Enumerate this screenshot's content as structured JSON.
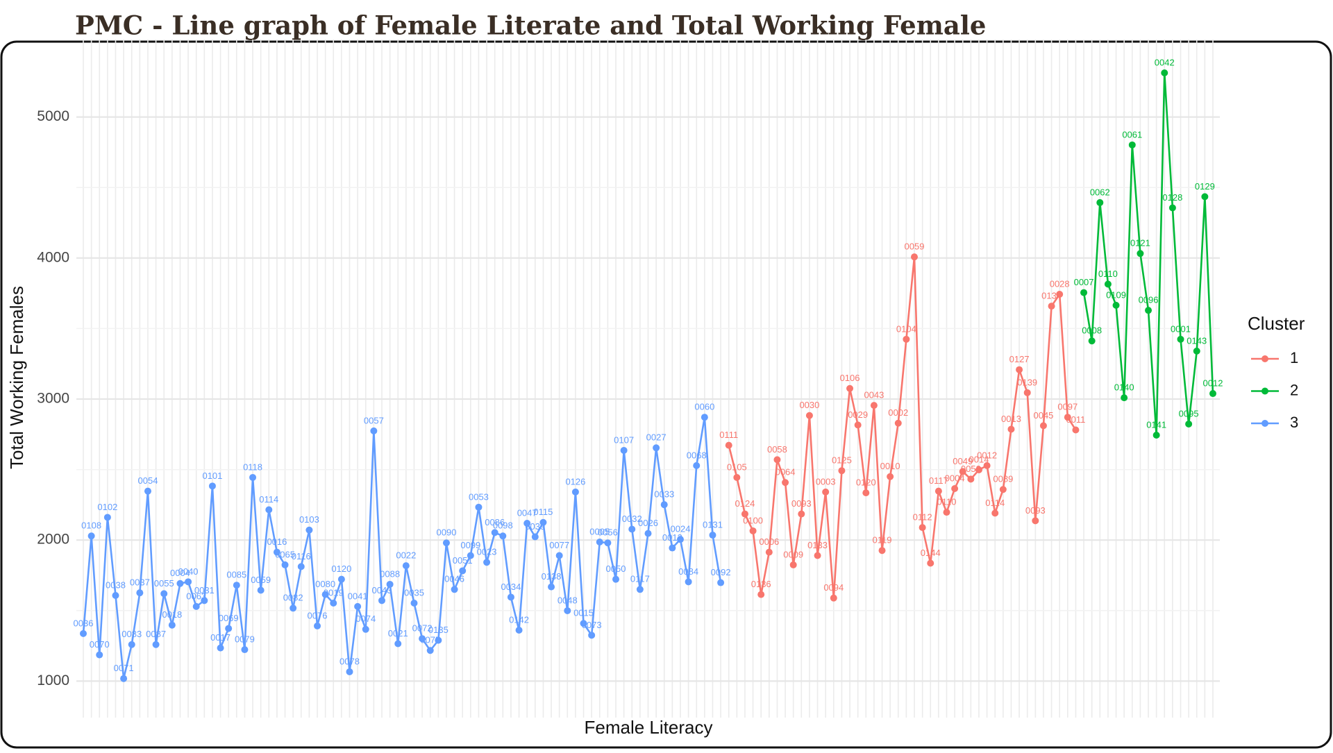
{
  "chart_data": {
    "type": "line",
    "title": "PMC - Line graph of Female Literate and Total Working  Female",
    "x_label": "Female Literacy",
    "y_label": "Total Working Females",
    "legend_title": "Cluster",
    "legend_position": "right",
    "grid": true,
    "ylim": [
      800,
      5500
    ],
    "yticks": [
      1000,
      2000,
      3000,
      4000,
      5000
    ],
    "series": [
      {
        "name": "3",
        "color": "#619CFF",
        "values": [
          1337,
          2029,
          1186,
          2161,
          1607,
          1018,
          1259,
          1626,
          2347,
          1259,
          1620,
          1397,
          1692,
          1704,
          1529,
          1571,
          2383,
          1235,
          1373,
          1680,
          1223,
          2444,
          1644,
          2215,
          1914,
          1824,
          1517,
          1812,
          2071,
          1391,
          1614,
          1553,
          1722,
          1066,
          1529,
          1367,
          2774,
          1571,
          1686,
          1265,
          1818,
          1553,
          1301,
          1217,
          1289,
          1980,
          1650,
          1782,
          1890,
          2233,
          1842,
          2053,
          2029,
          1595,
          1361,
          2119,
          2023,
          2125,
          1668,
          1890,
          1499,
          2341,
          1409,
          1325,
          1986,
          1980,
          1722,
          2636,
          2077,
          1650,
          2047,
          2654,
          2251,
          1944,
          2005,
          1704,
          2528,
          2871,
          2035,
          1698
        ],
        "point_labels": [
          "0036",
          "0108",
          "0070",
          "0102",
          "0038",
          "0071",
          "0083",
          "0037",
          "0054",
          "0087",
          "0055",
          "0018",
          "0004",
          "0040",
          "0063",
          "0031",
          "0101",
          "0017",
          "0069",
          "0085",
          "0079",
          "0118",
          "0059",
          "0114",
          "0016",
          "0065",
          "0082",
          "0116",
          "0103",
          "0076",
          "0080",
          "0019",
          "0120",
          "0078",
          "0041",
          "0074",
          "0057",
          "0043",
          "0088",
          "0021",
          "0022",
          "0035",
          "0072",
          "0075",
          "0135",
          "0090",
          "0046",
          "0051",
          "0099",
          "0053",
          "0023",
          "0086",
          "0098",
          "0034",
          "0142",
          "0047",
          "0039",
          "0115",
          "0138",
          "0077",
          "0048",
          "0126",
          "0015",
          "0073",
          "0005",
          "0056",
          "0050",
          "0107",
          "0032",
          "0117",
          "0026",
          "0027",
          "0033",
          "0013",
          "0024",
          "0084",
          "0068",
          "0060",
          "0131",
          "0092"
        ]
      },
      {
        "name": "1",
        "color": "#F8766D",
        "values": [
          2672,
          2444,
          2185,
          2065,
          1614,
          1914,
          2570,
          2408,
          1824,
          2185,
          2883,
          1890,
          2341,
          1589,
          2492,
          3075,
          2816,
          2335,
          2955,
          1926,
          2450,
          2829,
          3424,
          4008,
          2089,
          1836,
          2347,
          2197,
          2365,
          2486,
          2432,
          2498,
          2528,
          2191,
          2359,
          2786,
          3208,
          3045,
          2137,
          2811,
          3659,
          3743,
          2871,
          2781
        ],
        "point_labels": [
          "0111",
          "0105",
          "0124",
          "0100",
          "0136",
          "0006",
          "0058",
          "0064",
          "0009",
          "0093",
          "0030",
          "0133",
          "0003",
          "0094",
          "0125",
          "0106",
          "0029",
          "0120",
          "0043",
          "0119",
          "0010",
          "0002",
          "0104",
          "0059",
          "0112",
          "0144",
          "0117",
          "0110",
          "0004",
          "0049",
          "0052",
          "0014",
          "0012",
          "0114",
          "0089",
          "0013",
          "0127",
          "0139",
          "0093",
          "0045",
          "0134",
          "0028",
          "0097",
          "0011"
        ]
      },
      {
        "name": "2",
        "color": "#00BA38",
        "values": [
          3755,
          3412,
          4393,
          3815,
          3665,
          3009,
          4802,
          4032,
          3629,
          2744,
          5313,
          4356,
          3424,
          2823,
          3340,
          4435,
          3039
        ],
        "point_labels": [
          "0007",
          "0008",
          "0062",
          "0110",
          "0109",
          "0140",
          "0061",
          "0121",
          "0096",
          "0141",
          "0042",
          "0128",
          "0001",
          "0095",
          "0143",
          "0129",
          "0012"
        ]
      }
    ]
  }
}
